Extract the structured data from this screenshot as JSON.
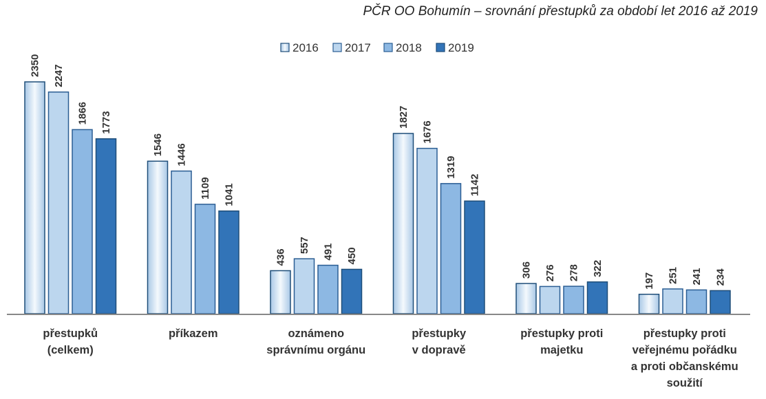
{
  "chart_data": {
    "type": "bar",
    "title": "PČR OO Bohumín – srovnání přestupků za období let 2016 až 2019",
    "categories": [
      [
        "přestupků",
        "(celkem)"
      ],
      [
        "příkazem"
      ],
      [
        "oznámeno",
        "správnímu orgánu"
      ],
      [
        "přestupky",
        "v dopravě"
      ],
      [
        "přestupky proti",
        "majetku"
      ],
      [
        "přestupky proti",
        "veřejnému pořádku",
        "a proti občanskému",
        "soužití"
      ]
    ],
    "series": [
      {
        "name": "2016",
        "values": [
          2350,
          1546,
          436,
          1827,
          306,
          197
        ],
        "color": "#d9e8f6"
      },
      {
        "name": "2017",
        "values": [
          2247,
          1446,
          557,
          1676,
          276,
          251
        ],
        "color": "#bcd6ee"
      },
      {
        "name": "2018",
        "values": [
          1866,
          1109,
          491,
          1319,
          278,
          241
        ],
        "color": "#8db8e3"
      },
      {
        "name": "2019",
        "values": [
          1773,
          1041,
          450,
          1142,
          322,
          234
        ],
        "color": "#3274b8"
      }
    ],
    "ylim": [
      0,
      2350
    ],
    "grid": false,
    "legend": "top",
    "xlabel": "",
    "ylabel": ""
  }
}
